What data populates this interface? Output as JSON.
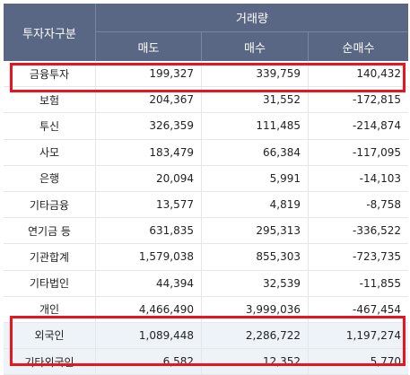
{
  "header": {
    "category": "투자자구분",
    "group": "거래량",
    "col_sell": "매도",
    "col_buy": "매수",
    "col_net": "순매수"
  },
  "rows": [
    {
      "name": "금융투자",
      "sell": "199,327",
      "buy": "339,759",
      "net": "140,432"
    },
    {
      "name": "보험",
      "sell": "204,367",
      "buy": "31,552",
      "net": "-172,815"
    },
    {
      "name": "투신",
      "sell": "326,359",
      "buy": "111,485",
      "net": "-214,874"
    },
    {
      "name": "사모",
      "sell": "183,479",
      "buy": "66,384",
      "net": "-117,095"
    },
    {
      "name": "은행",
      "sell": "20,094",
      "buy": "5,991",
      "net": "-14,103"
    },
    {
      "name": "기타금융",
      "sell": "13,577",
      "buy": "4,819",
      "net": "-8,758"
    },
    {
      "name": "연기금 등",
      "sell": "631,835",
      "buy": "295,313",
      "net": "-336,522"
    },
    {
      "name": "기관합계",
      "sell": "1,579,038",
      "buy": "855,303",
      "net": "-723,735"
    },
    {
      "name": "기타법인",
      "sell": "44,394",
      "buy": "32,539",
      "net": "-11,855"
    },
    {
      "name": "개인",
      "sell": "4,466,490",
      "buy": "3,999,036",
      "net": "-467,454"
    },
    {
      "name": "외국인",
      "sell": "1,089,448",
      "buy": "2,286,722",
      "net": "1,197,274"
    },
    {
      "name": "기타외국인",
      "sell": "6,582",
      "buy": "12,352",
      "net": "5,770"
    }
  ],
  "colors": {
    "header_bg": "#5a6784",
    "highlight_border": "#e8141f",
    "highlight_row_bg": "#eef3f8"
  }
}
